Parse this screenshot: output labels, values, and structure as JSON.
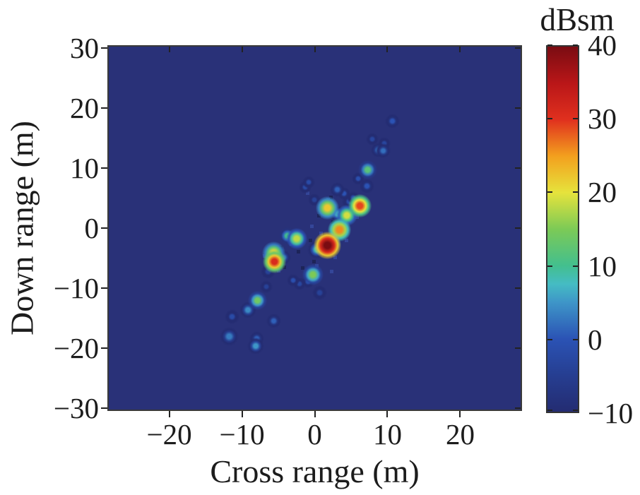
{
  "figure": {
    "xlabel": "Cross range (m)",
    "ylabel": "Down range (m)",
    "colorbar_title": "dBsm"
  },
  "chart_data": {
    "type": "heatmap",
    "title": "",
    "xlabel": "Cross range (m)",
    "ylabel": "Down range (m)",
    "xlim": [
      -28.5,
      28.5
    ],
    "ylim": [
      -30.5,
      30.5
    ],
    "xticks": [
      -20,
      -10,
      0,
      10,
      20
    ],
    "yticks": [
      -30,
      -20,
      -10,
      0,
      10,
      20,
      30
    ],
    "grid": false,
    "plot_background": "#293178",
    "colorbar": {
      "label": "dBsm",
      "min": -10,
      "max": 40,
      "ticks": [
        40,
        30,
        20,
        10,
        0,
        -10
      ],
      "position": "right"
    },
    "colormap": "jet",
    "colormap_stops": [
      [
        -10,
        "#242c72"
      ],
      [
        -5,
        "#263e91"
      ],
      [
        0,
        "#2b53b5"
      ],
      [
        5,
        "#3e96c8"
      ],
      [
        7.5,
        "#45bcc3"
      ],
      [
        10,
        "#43bf8e"
      ],
      [
        15,
        "#7cca56"
      ],
      [
        20,
        "#e6e33c"
      ],
      [
        25,
        "#f3a01e"
      ],
      [
        30,
        "#e0301e"
      ],
      [
        35,
        "#b91618"
      ],
      [
        40,
        "#7a0c12"
      ]
    ],
    "scatterers": [
      {
        "x": 1.6,
        "y": -2.6,
        "dbsm": 40,
        "r": 13
      },
      {
        "x": -5.7,
        "y": -5.3,
        "dbsm": 31,
        "r": 11
      },
      {
        "x": 6.0,
        "y": 4.0,
        "dbsm": 29,
        "r": 11
      },
      {
        "x": 3.2,
        "y": 0.0,
        "dbsm": 26,
        "r": 11
      },
      {
        "x": 1.6,
        "y": 3.6,
        "dbsm": 22,
        "r": 11
      },
      {
        "x": -5.8,
        "y": -4.0,
        "dbsm": 21,
        "r": 11
      },
      {
        "x": 4.2,
        "y": 2.4,
        "dbsm": 19,
        "r": 10
      },
      {
        "x": -2.7,
        "y": -1.5,
        "dbsm": 18,
        "r": 10
      },
      {
        "x": -0.4,
        "y": -7.5,
        "dbsm": 15,
        "r": 10
      },
      {
        "x": -8.1,
        "y": -11.8,
        "dbsm": 14,
        "r": 9
      },
      {
        "x": 7.1,
        "y": 10.0,
        "dbsm": 12,
        "r": 9
      },
      {
        "x": -3.9,
        "y": -1.1,
        "dbsm": 10,
        "r": 8
      },
      {
        "x": 2.6,
        "y": -2.4,
        "dbsm": 9,
        "r": 8
      },
      {
        "x": 0.1,
        "y": -3.3,
        "dbsm": 8,
        "r": 9
      },
      {
        "x": 3.0,
        "y": 2.6,
        "dbsm": 7,
        "r": 8
      },
      {
        "x": -8.3,
        "y": -19.4,
        "dbsm": 5,
        "r": 8
      },
      {
        "x": -9.4,
        "y": -13.4,
        "dbsm": 4,
        "r": 8
      },
      {
        "x": -11.9,
        "y": -17.8,
        "dbsm": 3,
        "r": 9
      },
      {
        "x": -4.5,
        "y": -4.6,
        "dbsm": 3,
        "r": 7
      },
      {
        "x": 8.5,
        "y": 13.2,
        "dbsm": 2,
        "r": 7
      },
      {
        "x": 9.2,
        "y": 13.1,
        "dbsm": 2,
        "r": 7
      },
      {
        "x": -8.2,
        "y": -18.2,
        "dbsm": 1,
        "r": 7
      },
      {
        "x": -5.8,
        "y": -15.2,
        "dbsm": 1,
        "r": 7
      },
      {
        "x": 2.9,
        "y": 6.7,
        "dbsm": 1,
        "r": 7
      },
      {
        "x": 7.0,
        "y": 7.2,
        "dbsm": 0,
        "r": 7
      },
      {
        "x": 3.8,
        "y": 6.0,
        "dbsm": 0,
        "r": 6
      },
      {
        "x": 10.5,
        "y": 18.1,
        "dbsm": 0,
        "r": 7
      },
      {
        "x": 5.8,
        "y": 8.5,
        "dbsm": -1,
        "r": 6
      },
      {
        "x": 5.1,
        "y": 5.3,
        "dbsm": -1,
        "r": 6
      },
      {
        "x": -1.1,
        "y": -8.7,
        "dbsm": -1,
        "r": 6
      },
      {
        "x": -3.2,
        "y": -8.5,
        "dbsm": -1,
        "r": 6
      },
      {
        "x": -1.5,
        "y": 7.1,
        "dbsm": -2,
        "r": 6
      },
      {
        "x": -1.0,
        "y": 7.9,
        "dbsm": -2,
        "r": 6
      },
      {
        "x": -11.6,
        "y": -14.5,
        "dbsm": -2,
        "r": 7
      },
      {
        "x": 4.6,
        "y": 4.6,
        "dbsm": -2,
        "r": 7
      },
      {
        "x": 9.4,
        "y": 14.4,
        "dbsm": -3,
        "r": 6
      },
      {
        "x": 7.7,
        "y": 15.1,
        "dbsm": -3,
        "r": 6
      },
      {
        "x": -2.3,
        "y": -9.1,
        "dbsm": -3,
        "r": 6
      },
      {
        "x": -6.6,
        "y": -7.0,
        "dbsm": -4,
        "r": 7
      },
      {
        "x": 0.5,
        "y": -10.5,
        "dbsm": -4,
        "r": 7
      },
      {
        "x": -0.2,
        "y": 5.0,
        "dbsm": -4,
        "r": 6
      },
      {
        "x": -6.8,
        "y": -9.5,
        "dbsm": -4,
        "r": 6
      }
    ],
    "noise": {
      "dark_color": "#1d2458",
      "light_color": "#344699",
      "dark": [
        [
          0.6,
          -2.0
        ],
        [
          2.6,
          -3.4
        ],
        [
          -0.3,
          -5.3
        ],
        [
          1.0,
          -1.0
        ],
        [
          -6.6,
          -5.9
        ],
        [
          -4.9,
          -2.9
        ],
        [
          3.9,
          -0.7
        ],
        [
          2.3,
          1.3
        ],
        [
          4.9,
          3.0
        ],
        [
          -1.9,
          -6.4
        ],
        [
          0.3,
          2.3
        ],
        [
          -4.4,
          -6.3
        ],
        [
          1.1,
          -4.2
        ],
        [
          -2.5,
          -3.6
        ],
        [
          5.2,
          4.6
        ],
        [
          2.0,
          5.4
        ],
        [
          -6.9,
          -4.7
        ],
        [
          -0.8,
          -1.8
        ]
      ],
      "light": [
        [
          1.6,
          5.1
        ],
        [
          4.4,
          4.9
        ],
        [
          2.1,
          -6.9
        ],
        [
          -7.1,
          -4.4
        ],
        [
          5.6,
          2.1
        ],
        [
          -1.2,
          6.1
        ],
        [
          0.6,
          -0.6
        ],
        [
          3.4,
          3.3
        ],
        [
          6.6,
          3.3
        ],
        [
          -6.2,
          -3.1
        ],
        [
          -0.6,
          0.6
        ],
        [
          2.6,
          -4.6
        ],
        [
          -3.4,
          -2.4
        ],
        [
          0.0,
          -6.0
        ],
        [
          4.1,
          -1.8
        ],
        [
          -5.2,
          -6.8
        ],
        [
          1.9,
          -3.0
        ],
        [
          -2.9,
          -0.5
        ]
      ]
    }
  }
}
